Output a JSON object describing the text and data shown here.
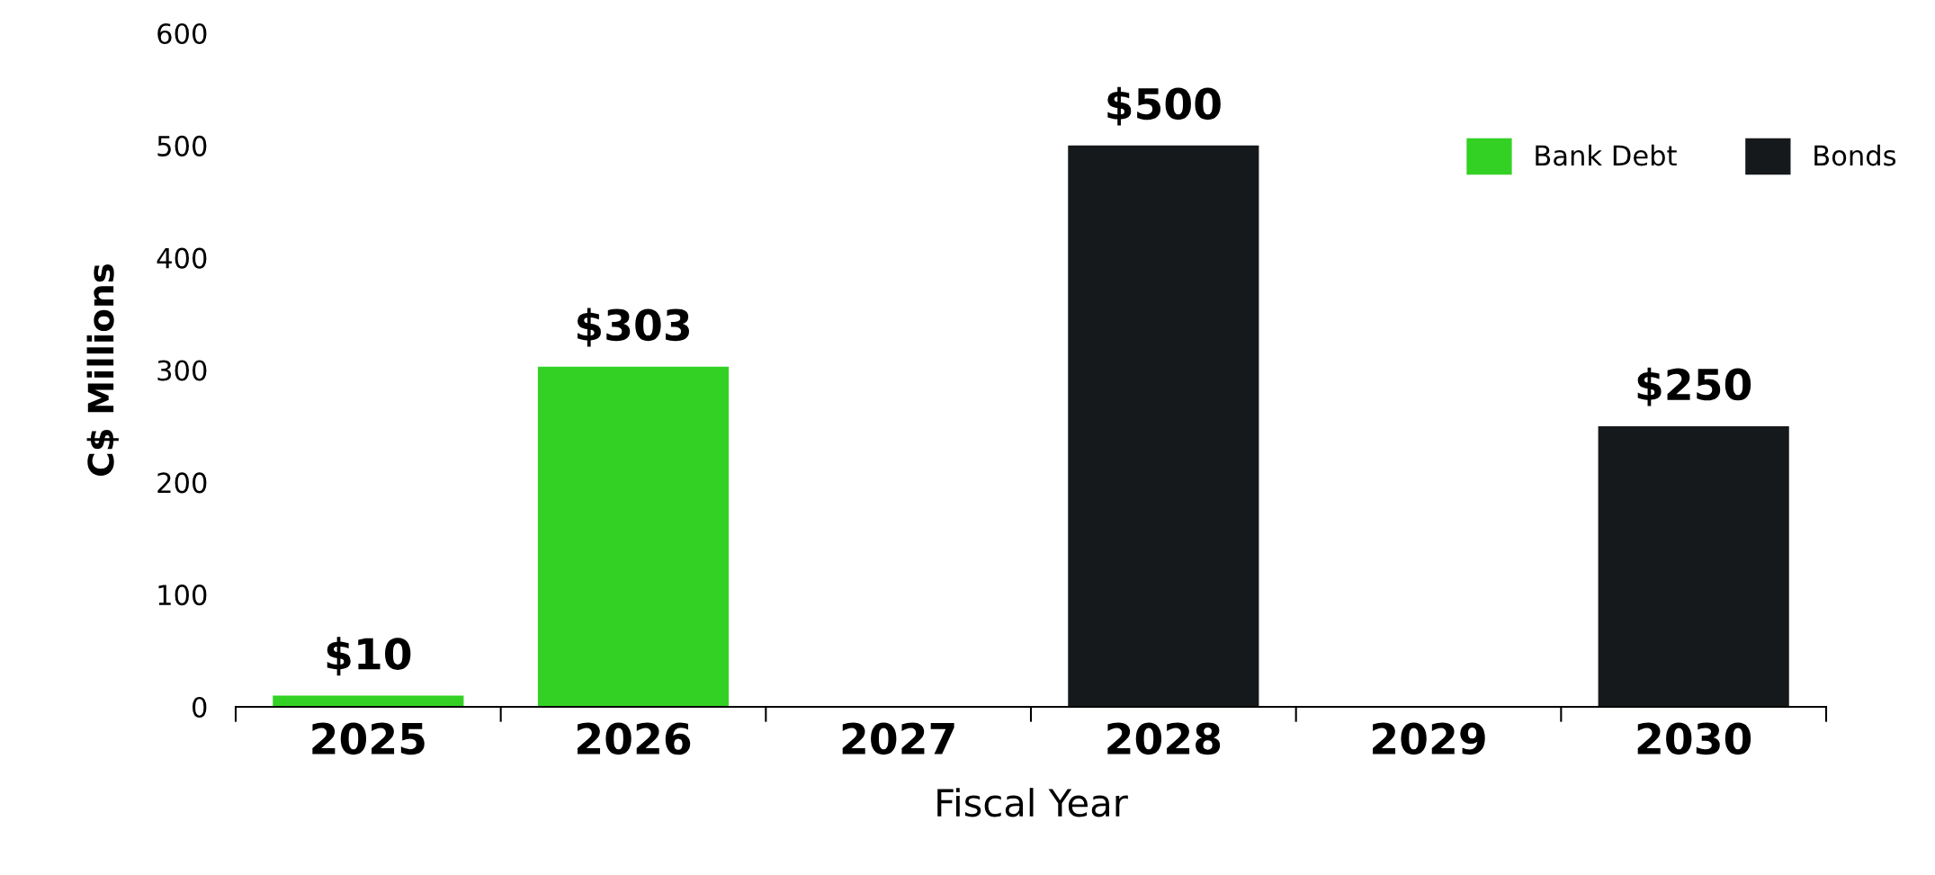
{
  "chart_data": {
    "type": "bar",
    "xlabel": "Fiscal Year",
    "ylabel": "C$ Millions",
    "categories": [
      "2025",
      "2026",
      "2027",
      "2028",
      "2029",
      "2030"
    ],
    "series": [
      {
        "name": "Bank Debt",
        "color": "#33d124",
        "values": [
          10,
          303,
          null,
          null,
          null,
          null
        ],
        "value_labels": [
          "$10",
          "$303",
          null,
          null,
          null,
          null
        ]
      },
      {
        "name": "Bonds",
        "color": "#16191b",
        "values": [
          null,
          null,
          null,
          500,
          null,
          250
        ],
        "value_labels": [
          null,
          null,
          null,
          "$500",
          null,
          "$250"
        ]
      }
    ],
    "ylim": [
      0,
      600
    ],
    "yticks": [
      0,
      100,
      200,
      300,
      400,
      500,
      600
    ],
    "grid": false,
    "legend": "top right"
  }
}
